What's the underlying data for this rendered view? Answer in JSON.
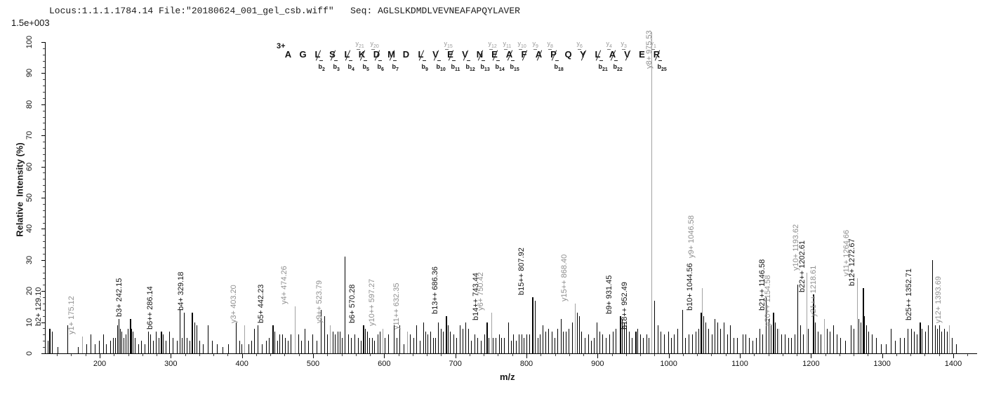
{
  "header": {
    "locus_file": "Locus:1.1.1.1784.14 File:\"20180624_001_gel_csb.wiff\"",
    "seq": "Seq: AGLSLKDMDLVEVNEAFAPQYLAVER"
  },
  "scale_label": "1.5e+003",
  "colors": {
    "b_ion": "#000000",
    "y_ion_line": "#a3a3a3",
    "y_ion_label": "#8f8f8f",
    "axis": "#000000"
  },
  "chart_data": {
    "type": "bar",
    "note": "MS/MS peptide fragmentation centroid (stick) spectrum",
    "title": "Locus:1.1.1.1784.14 File:\"20180624_001_gel_csb.wiff\" Seq: AGLSLKDMDLVEVNEAFAPQYLAVER",
    "xlabel": "m/z",
    "ylabel": "Relative  Intensity (%)",
    "xlim": [
      124,
      1432
    ],
    "ylim": [
      0,
      100
    ],
    "grid": false,
    "x_ticks": {
      "start": 200,
      "end": 1400,
      "step": 100,
      "minor_step": 20
    },
    "y_ticks": {
      "start": 0,
      "end": 100,
      "step": 10,
      "minor_step": 2
    },
    "full_scale_intensity": "1.5e+003",
    "precursor_charge": "3+",
    "peptide": {
      "residues": [
        "A",
        "G",
        "L",
        "S",
        "L",
        "K",
        "D",
        "M",
        "D",
        "L",
        "V",
        "E",
        "V",
        "N",
        "E",
        "A",
        "F",
        "A",
        "P",
        "Q",
        "Y",
        "L",
        "A",
        "V",
        "E",
        "R"
      ],
      "cleavages": [
        {
          "after": 2,
          "b": 2,
          "y": null
        },
        {
          "after": 3,
          "b": 3,
          "y": null
        },
        {
          "after": 4,
          "b": 4,
          "y": null
        },
        {
          "after": 5,
          "b": 5,
          "y": 21
        },
        {
          "after": 6,
          "b": 6,
          "y": 20
        },
        {
          "after": 7,
          "b": 7,
          "y": null
        },
        {
          "after": 9,
          "b": 9,
          "y": null
        },
        {
          "after": 10,
          "b": 10,
          "y": null
        },
        {
          "after": 11,
          "b": 11,
          "y": 15
        },
        {
          "after": 12,
          "b": 12,
          "y": null
        },
        {
          "after": 13,
          "b": 13,
          "y": null
        },
        {
          "after": 14,
          "b": 14,
          "y": 12
        },
        {
          "after": 15,
          "b": 15,
          "y": 11
        },
        {
          "after": 16,
          "b": null,
          "y": 10
        },
        {
          "after": 17,
          "b": null,
          "y": 9
        },
        {
          "after": 18,
          "b": 18,
          "y": 8
        },
        {
          "after": 20,
          "b": null,
          "y": 6
        },
        {
          "after": 21,
          "b": 21,
          "y": null
        },
        {
          "after": 22,
          "b": 22,
          "y": 4
        },
        {
          "after": 23,
          "b": null,
          "y": 3
        },
        {
          "after": 25,
          "b": 25,
          "y": 1
        }
      ]
    },
    "labeled_peaks": [
      {
        "label": "b2+ 129.10",
        "series": "b",
        "mz": 129.1,
        "intensity_pct": 8
      },
      {
        "label": "y1+ 175.12",
        "series": "y",
        "mz": 175.12,
        "intensity_pct": 5.5
      },
      {
        "label": "b3+ 242.15",
        "series": "b",
        "mz": 242.15,
        "intensity_pct": 11
      },
      {
        "label": "b6++ 286.14",
        "series": "b",
        "mz": 286.14,
        "intensity_pct": 7
      },
      {
        "label": "b4+ 329.18",
        "series": "b",
        "mz": 329.18,
        "intensity_pct": 13
      },
      {
        "label": "y3+ 403.20",
        "series": "y",
        "mz": 403.2,
        "intensity_pct": 9
      },
      {
        "label": "b5+ 442.23",
        "series": "b",
        "mz": 442.23,
        "intensity_pct": 9
      },
      {
        "label": "y4+ 474.26",
        "series": "y",
        "mz": 474.26,
        "intensity_pct": 15
      },
      {
        "label": "y9++ 523.79",
        "series": "y",
        "mz": 523.79,
        "intensity_pct": 9
      },
      {
        "label": "b6+ 570.28",
        "series": "b",
        "mz": 570.28,
        "intensity_pct": 9
      },
      {
        "label": "y10++ 597.27",
        "series": "y",
        "mz": 597.27,
        "intensity_pct": 8
      },
      {
        "label": "y11++ 632.35",
        "series": "y",
        "mz": 632.35,
        "intensity_pct": 7
      },
      {
        "label": "b13++ 686.36",
        "series": "b",
        "mz": 686.36,
        "intensity_pct": 12
      },
      {
        "label": "b14++ 743.44",
        "series": "b",
        "mz": 743.44,
        "intensity_pct": 10
      },
      {
        "label": "y6+ 750.42",
        "series": "y",
        "mz": 750.42,
        "intensity_pct": 13
      },
      {
        "label": "b15++ 807.92",
        "series": "b",
        "mz": 807.92,
        "intensity_pct": 18
      },
      {
        "label": "y15++ 868.40",
        "series": "y",
        "mz": 868.4,
        "intensity_pct": 16
      },
      {
        "label": "b9+ 931.45",
        "series": "b",
        "mz": 931.45,
        "intensity_pct": 12
      },
      {
        "label": "b18++ 952.49",
        "series": "b",
        "mz": 952.49,
        "intensity_pct": 7
      },
      {
        "label": "y8+ 975.53",
        "series": "y",
        "mz": 975.53,
        "intensity_pct": 100,
        "base_peak": true
      },
      {
        "label": "b10+ 1044.56",
        "series": "b",
        "mz": 1044.56,
        "intensity_pct": 13
      },
      {
        "label": "y9+ 1046.58",
        "series": "y",
        "mz": 1046.58,
        "intensity_pct": 21,
        "label_lift": 40
      },
      {
        "label": "b21++ 1146.58",
        "series": "b",
        "mz": 1146.58,
        "intensity_pct": 13
      },
      {
        "label": "y20++ 1154.58",
        "series": "y",
        "mz": 1154.58,
        "intensity_pct": 8
      },
      {
        "label": "y10+ 1193.62",
        "series": "y",
        "mz": 1193.62,
        "intensity_pct": 26
      },
      {
        "label": "b22++ 1202.61",
        "series": "b",
        "mz": 1202.61,
        "intensity_pct": 19
      },
      {
        "label": "y21++ 1218.61",
        "series": "y",
        "mz": 1218.61,
        "intensity_pct": 11
      },
      {
        "label": "y11+ 1264.66",
        "series": "y",
        "mz": 1264.66,
        "intensity_pct": 24
      },
      {
        "label": "b12+ 1272.67",
        "series": "b",
        "mz": 1272.67,
        "intensity_pct": 21
      },
      {
        "label": "b25++ 1352.71",
        "series": "b",
        "mz": 1352.71,
        "intensity_pct": 10
      },
      {
        "label": "y12+ 1393.69",
        "series": "y",
        "mz": 1393.69,
        "intensity_pct": 9
      }
    ],
    "unlabeled_peaks": [
      [
        127,
        4
      ],
      [
        133,
        7
      ],
      [
        141,
        2
      ],
      [
        155,
        9
      ],
      [
        169,
        2
      ],
      [
        181,
        3
      ],
      [
        187,
        6
      ],
      [
        193,
        3
      ],
      [
        199,
        4
      ],
      [
        205,
        6
      ],
      [
        209,
        3
      ],
      [
        215,
        4
      ],
      [
        219,
        5
      ],
      [
        222,
        5
      ],
      [
        225,
        9
      ],
      [
        227,
        11
      ],
      [
        229,
        8
      ],
      [
        231,
        7
      ],
      [
        233,
        5
      ],
      [
        236,
        6
      ],
      [
        239,
        8
      ],
      [
        244,
        8
      ],
      [
        246,
        7
      ],
      [
        249,
        5
      ],
      [
        254,
        3
      ],
      [
        258,
        4
      ],
      [
        263,
        3
      ],
      [
        268,
        7
      ],
      [
        271,
        6
      ],
      [
        275,
        4
      ],
      [
        279,
        7
      ],
      [
        283,
        5
      ],
      [
        289,
        6
      ],
      [
        293,
        4
      ],
      [
        298,
        7
      ],
      [
        303,
        5
      ],
      [
        308,
        4
      ],
      [
        312,
        14
      ],
      [
        315,
        5
      ],
      [
        318,
        13
      ],
      [
        322,
        5
      ],
      [
        326,
        4
      ],
      [
        333,
        10
      ],
      [
        336,
        9
      ],
      [
        340,
        4
      ],
      [
        345,
        3
      ],
      [
        352,
        9
      ],
      [
        358,
        4
      ],
      [
        365,
        3
      ],
      [
        373,
        2
      ],
      [
        381,
        3
      ],
      [
        391,
        10
      ],
      [
        396,
        4
      ],
      [
        399,
        3
      ],
      [
        409,
        3
      ],
      [
        413,
        4
      ],
      [
        417,
        8
      ],
      [
        422,
        9
      ],
      [
        428,
        3
      ],
      [
        434,
        4
      ],
      [
        438,
        5
      ],
      [
        444,
        8
      ],
      [
        446,
        7
      ],
      [
        450,
        4
      ],
      [
        453,
        6
      ],
      [
        457,
        6
      ],
      [
        460,
        5
      ],
      [
        464,
        4
      ],
      [
        468,
        6
      ],
      [
        479,
        6
      ],
      [
        483,
        4
      ],
      [
        488,
        8
      ],
      [
        493,
        4
      ],
      [
        499,
        6
      ],
      [
        505,
        4
      ],
      [
        511,
        14
      ],
      [
        516,
        12
      ],
      [
        520,
        6
      ],
      [
        528,
        7
      ],
      [
        531,
        6
      ],
      [
        534,
        7
      ],
      [
        537,
        7
      ],
      [
        540,
        5
      ],
      [
        544,
        31
      ],
      [
        549,
        6
      ],
      [
        553,
        5
      ],
      [
        558,
        6
      ],
      [
        563,
        5
      ],
      [
        567,
        4
      ],
      [
        573,
        8
      ],
      [
        576,
        7
      ],
      [
        579,
        5
      ],
      [
        583,
        5
      ],
      [
        586,
        4
      ],
      [
        591,
        6
      ],
      [
        594,
        7
      ],
      [
        601,
        5
      ],
      [
        606,
        6
      ],
      [
        613,
        9
      ],
      [
        617,
        5
      ],
      [
        621,
        9
      ],
      [
        627,
        3
      ],
      [
        636,
        6
      ],
      [
        641,
        5
      ],
      [
        645,
        9
      ],
      [
        650,
        4
      ],
      [
        655,
        10
      ],
      [
        658,
        7
      ],
      [
        661,
        6
      ],
      [
        665,
        7
      ],
      [
        669,
        5
      ],
      [
        672,
        5
      ],
      [
        676,
        10
      ],
      [
        680,
        8
      ],
      [
        683,
        7
      ],
      [
        689,
        9
      ],
      [
        692,
        7
      ],
      [
        697,
        6
      ],
      [
        701,
        5
      ],
      [
        706,
        9
      ],
      [
        710,
        8
      ],
      [
        714,
        10
      ],
      [
        718,
        8
      ],
      [
        722,
        4
      ],
      [
        727,
        6
      ],
      [
        731,
        5
      ],
      [
        736,
        4
      ],
      [
        741,
        6
      ],
      [
        747,
        5
      ],
      [
        753,
        5
      ],
      [
        757,
        5
      ],
      [
        761,
        6
      ],
      [
        764,
        5
      ],
      [
        768,
        5
      ],
      [
        774,
        10
      ],
      [
        778,
        4
      ],
      [
        781,
        6
      ],
      [
        785,
        4
      ],
      [
        789,
        6
      ],
      [
        793,
        6
      ],
      [
        796,
        5
      ],
      [
        800,
        6
      ],
      [
        804,
        6
      ],
      [
        812,
        17
      ],
      [
        816,
        5
      ],
      [
        819,
        6
      ],
      [
        823,
        9
      ],
      [
        827,
        7
      ],
      [
        831,
        8
      ],
      [
        835,
        7
      ],
      [
        839,
        5
      ],
      [
        843,
        8
      ],
      [
        848,
        11
      ],
      [
        851,
        7
      ],
      [
        855,
        7
      ],
      [
        859,
        8
      ],
      [
        864,
        10
      ],
      [
        871,
        13
      ],
      [
        874,
        12
      ],
      [
        877,
        7
      ],
      [
        882,
        5
      ],
      [
        887,
        6
      ],
      [
        891,
        4
      ],
      [
        895,
        5
      ],
      [
        899,
        10
      ],
      [
        903,
        7
      ],
      [
        907,
        6
      ],
      [
        911,
        5
      ],
      [
        916,
        6
      ],
      [
        921,
        7
      ],
      [
        925,
        8
      ],
      [
        934,
        11
      ],
      [
        937,
        10
      ],
      [
        940,
        9
      ],
      [
        944,
        7
      ],
      [
        948,
        5
      ],
      [
        956,
        8
      ],
      [
        960,
        6
      ],
      [
        964,
        5
      ],
      [
        969,
        6
      ],
      [
        972,
        5
      ],
      [
        980,
        17
      ],
      [
        984,
        9
      ],
      [
        988,
        7
      ],
      [
        993,
        6
      ],
      [
        999,
        7
      ],
      [
        1003,
        5
      ],
      [
        1007,
        6
      ],
      [
        1012,
        8
      ],
      [
        1019,
        14
      ],
      [
        1023,
        5
      ],
      [
        1028,
        6
      ],
      [
        1033,
        6
      ],
      [
        1038,
        7
      ],
      [
        1042,
        8
      ],
      [
        1049,
        12
      ],
      [
        1052,
        10
      ],
      [
        1056,
        8
      ],
      [
        1060,
        6
      ],
      [
        1064,
        11
      ],
      [
        1068,
        10
      ],
      [
        1072,
        8
      ],
      [
        1077,
        10
      ],
      [
        1082,
        6
      ],
      [
        1086,
        9
      ],
      [
        1091,
        5
      ],
      [
        1096,
        5
      ],
      [
        1104,
        6
      ],
      [
        1108,
        6
      ],
      [
        1113,
        5
      ],
      [
        1118,
        4
      ],
      [
        1123,
        5
      ],
      [
        1128,
        8
      ],
      [
        1132,
        6
      ],
      [
        1136,
        18
      ],
      [
        1140,
        11
      ],
      [
        1143,
        9
      ],
      [
        1149,
        10
      ],
      [
        1152,
        8
      ],
      [
        1158,
        6
      ],
      [
        1163,
        6
      ],
      [
        1168,
        5
      ],
      [
        1172,
        5
      ],
      [
        1177,
        6
      ],
      [
        1181,
        22
      ],
      [
        1185,
        9
      ],
      [
        1189,
        6
      ],
      [
        1196,
        8
      ],
      [
        1206,
        10
      ],
      [
        1209,
        7
      ],
      [
        1213,
        6
      ],
      [
        1222,
        8
      ],
      [
        1226,
        7
      ],
      [
        1231,
        9
      ],
      [
        1236,
        6
      ],
      [
        1241,
        5
      ],
      [
        1248,
        4
      ],
      [
        1256,
        9
      ],
      [
        1260,
        8
      ],
      [
        1267,
        11
      ],
      [
        1270,
        10
      ],
      [
        1275,
        12
      ],
      [
        1278,
        9
      ],
      [
        1281,
        7
      ],
      [
        1285,
        6
      ],
      [
        1291,
        5
      ],
      [
        1298,
        3
      ],
      [
        1305,
        3
      ],
      [
        1312,
        8
      ],
      [
        1318,
        4
      ],
      [
        1325,
        5
      ],
      [
        1331,
        5
      ],
      [
        1336,
        8
      ],
      [
        1341,
        8
      ],
      [
        1345,
        7
      ],
      [
        1349,
        6
      ],
      [
        1356,
        8
      ],
      [
        1360,
        7
      ],
      [
        1364,
        9
      ],
      [
        1370,
        30
      ],
      [
        1374,
        9
      ],
      [
        1377,
        8
      ],
      [
        1380,
        9
      ],
      [
        1383,
        7
      ],
      [
        1387,
        8
      ],
      [
        1391,
        7
      ],
      [
        1398,
        5
      ],
      [
        1404,
        3
      ]
    ]
  }
}
